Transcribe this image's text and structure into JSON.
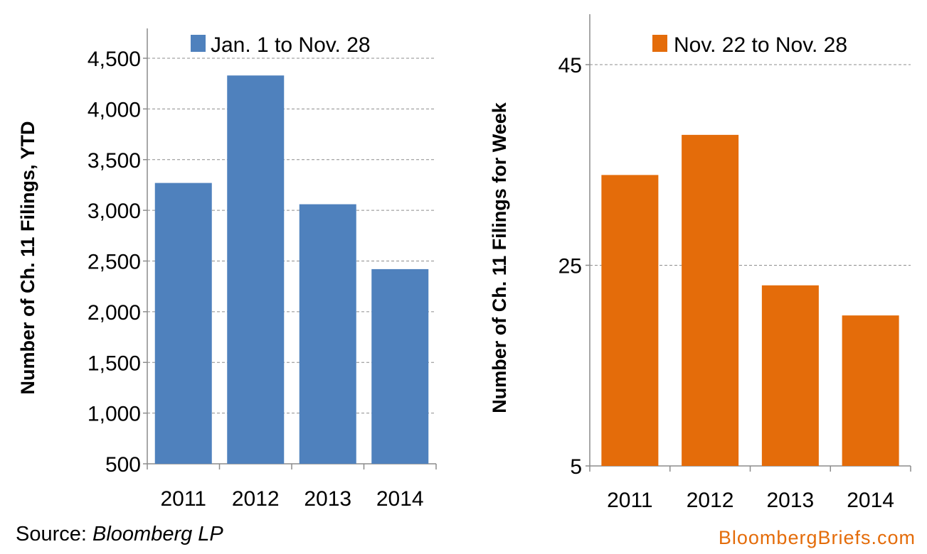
{
  "chart_data": [
    {
      "type": "bar",
      "categories": [
        "2011",
        "2012",
        "2013",
        "2014"
      ],
      "series": [
        {
          "name": "Jan. 1 to Nov. 28",
          "values": [
            3270,
            4330,
            3060,
            2420
          ]
        }
      ],
      "ylabel": "Number of Ch. 11 Filings, YTD",
      "xlabel": "",
      "ylim": [
        500,
        4500
      ],
      "yticks": [
        "500",
        "1,000",
        "1,500",
        "2,000",
        "2,500",
        "3,000",
        "3,500",
        "4,000",
        "4,500"
      ],
      "ytick_values": [
        500,
        1000,
        1500,
        2000,
        2500,
        3000,
        3500,
        4000,
        4500
      ],
      "grid": true,
      "legend": "top",
      "color": "#4f81bd"
    },
    {
      "type": "bar",
      "categories": [
        "2011",
        "2012",
        "2013",
        "2014"
      ],
      "series": [
        {
          "name": "Nov. 22 to Nov. 28",
          "values": [
            34,
            38,
            23,
            20
          ]
        }
      ],
      "ylabel": "Number of Ch. 11 Filings for Week",
      "xlabel": "",
      "ylim": [
        5,
        45
      ],
      "yticks": [
        "5",
        "25",
        "45"
      ],
      "ytick_values": [
        5,
        25,
        45
      ],
      "grid": true,
      "legend": "top",
      "color": "#e46c0a"
    }
  ],
  "footer": {
    "source_prefix": "Source: ",
    "source_name": "Bloomberg LP",
    "brand": "BloombergBriefs.com",
    "brand_color": "#e46c0a"
  }
}
